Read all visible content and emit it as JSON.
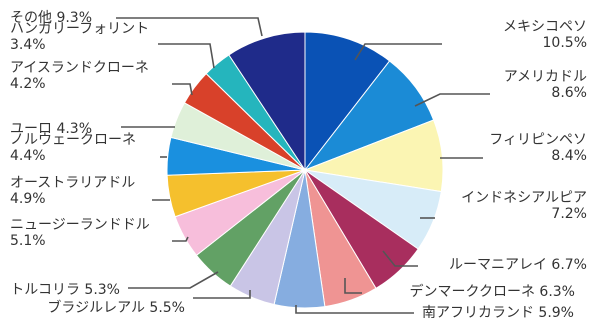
{
  "chart_data": {
    "type": "pie",
    "title": "",
    "start": "12 o'clock",
    "direction": "clockwise",
    "slices": [
      {
        "label": "メキシコペソ",
        "value": 10.5,
        "text": "10.5%",
        "color": "#0a52b5"
      },
      {
        "label": "アメリカドル",
        "value": 8.6,
        "text": "8.6%",
        "color": "#1b8bd6"
      },
      {
        "label": "フィリピンペソ",
        "value": 8.4,
        "text": "8.4%",
        "color": "#fbf5b3"
      },
      {
        "label": "インドネシアルピア",
        "value": 7.2,
        "text": "7.2%",
        "color": "#d7ecf8"
      },
      {
        "label": "ルーマニアレイ",
        "value": 6.7,
        "text": "6.7%",
        "color": "#a82e5e"
      },
      {
        "label": "デンマーククローネ",
        "value": 6.3,
        "text": "6.3%",
        "color": "#ef9493"
      },
      {
        "label": "南アフリカランド",
        "value": 5.9,
        "text": "5.9%",
        "color": "#86ade0"
      },
      {
        "label": "ブラジルレアル",
        "value": 5.5,
        "text": "5.5%",
        "color": "#c9c5e6"
      },
      {
        "label": "トルコリラ",
        "value": 5.3,
        "text": "5.3%",
        "color": "#62a165"
      },
      {
        "label": "ニュージーランドドル",
        "value": 5.1,
        "text": "5.1%",
        "color": "#f7bedb"
      },
      {
        "label": "オーストラリアドル",
        "value": 4.9,
        "text": "4.9%",
        "color": "#f5c02d"
      },
      {
        "label": "ノルウェークローネ",
        "value": 4.4,
        "text": "4.4%",
        "color": "#1a90df"
      },
      {
        "label": "ユーロ",
        "value": 4.3,
        "text": "4.3%",
        "color": "#dff0d9"
      },
      {
        "label": "アイスランドクローネ",
        "value": 4.2,
        "text": "4.2%",
        "color": "#d8412a"
      },
      {
        "label": "ハンガリーフォリント",
        "value": 3.4,
        "text": "3.4%",
        "color": "#25b5bd"
      },
      {
        "label": "その他",
        "value": 9.3,
        "text": "9.3%",
        "color": "#1f2b8a"
      }
    ]
  }
}
